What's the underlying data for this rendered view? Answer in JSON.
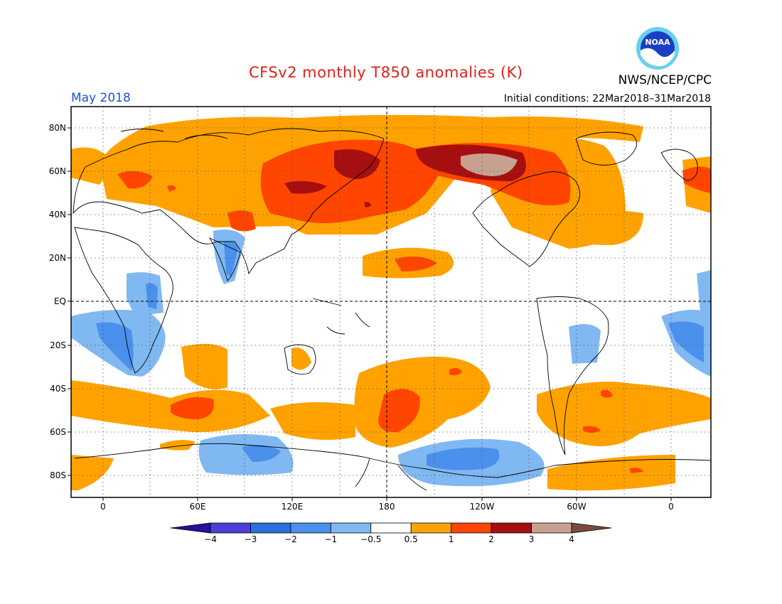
{
  "header": {
    "title": "CFSv2 monthly T850 anomalies (K)",
    "month": "May 2018",
    "initial_conditions": "Initial conditions: 22Mar2018–31Mar2018",
    "organization": "NWS/NCEP/CPC",
    "logo_text": "NOAA"
  },
  "axes": {
    "lat_labels": [
      "80N",
      "60N",
      "40N",
      "20N",
      "EQ",
      "20S",
      "40S",
      "60S",
      "80S"
    ],
    "lon_labels": [
      "0",
      "60E",
      "120E",
      "180",
      "120W",
      "60W",
      "0"
    ]
  },
  "colorbar": {
    "labels": [
      "−4",
      "−3",
      "−2",
      "−1",
      "−0.5",
      "0.5",
      "1",
      "2",
      "3",
      "4"
    ],
    "colors": [
      "#2b0e9a",
      "#4a3fd6",
      "#2a6fdc",
      "#4a90ec",
      "#80b8f2",
      "#ffffff",
      "#ffa200",
      "#ff4500",
      "#a50f0f",
      "#c8a090",
      "#7a4a3c"
    ]
  },
  "palette": {
    "light_orange": "#ffa200",
    "red_orange": "#ff4500",
    "dark_red": "#a50f0f",
    "tan": "#c8a090",
    "light_blue": "#80b8f2",
    "mid_blue": "#4a90ec",
    "title_red": "#e0201a",
    "month_blue": "#1a4fe8"
  }
}
